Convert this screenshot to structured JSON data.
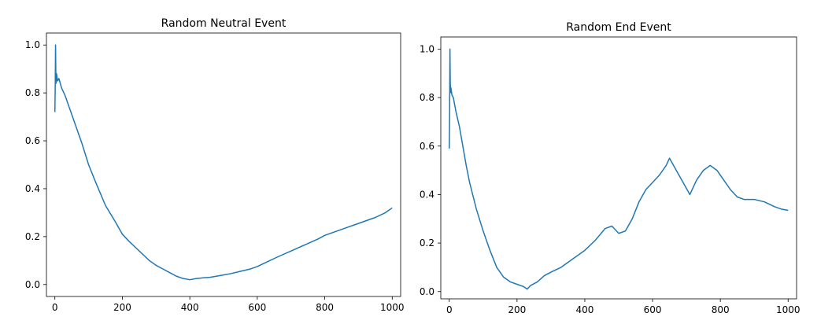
{
  "chart_data": [
    {
      "type": "line",
      "title": "Random Neutral Event",
      "xlabel": "",
      "ylabel": "",
      "xlim": [
        -25,
        1025
      ],
      "ylim": [
        -0.05,
        1.05
      ],
      "xticks": [
        0,
        200,
        400,
        600,
        800,
        1000
      ],
      "yticks": [
        0.0,
        0.2,
        0.4,
        0.6,
        0.8,
        1.0
      ],
      "xtick_labels": [
        "0",
        "200",
        "400",
        "600",
        "800",
        "1000"
      ],
      "ytick_labels": [
        "0.0",
        "0.2",
        "0.4",
        "0.6",
        "0.8",
        "1.0"
      ],
      "grid": false,
      "color": "#1f77b4",
      "series": [
        {
          "x": [
            0,
            1,
            2,
            3,
            4,
            5,
            8,
            12,
            20,
            30,
            40,
            50,
            60,
            80,
            100,
            120,
            150,
            180,
            200,
            220,
            250,
            280,
            300,
            320,
            340,
            360,
            380,
            400,
            420,
            440,
            460,
            480,
            500,
            520,
            550,
            580,
            600,
            630,
            660,
            700,
            740,
            780,
            800,
            850,
            900,
            950,
            980,
            1000
          ],
          "y": [
            0.72,
            0.82,
            1.0,
            0.86,
            0.84,
            0.88,
            0.85,
            0.86,
            0.82,
            0.79,
            0.75,
            0.71,
            0.67,
            0.59,
            0.5,
            0.43,
            0.33,
            0.26,
            0.21,
            0.18,
            0.14,
            0.1,
            0.08,
            0.065,
            0.05,
            0.035,
            0.025,
            0.02,
            0.025,
            0.028,
            0.03,
            0.035,
            0.04,
            0.045,
            0.055,
            0.065,
            0.075,
            0.095,
            0.115,
            0.14,
            0.165,
            0.19,
            0.205,
            0.23,
            0.255,
            0.28,
            0.3,
            0.32
          ]
        }
      ]
    },
    {
      "type": "line",
      "title": "Random End Event",
      "xlabel": "",
      "ylabel": "",
      "xlim": [
        -25,
        1025
      ],
      "ylim": [
        -0.03,
        1.05
      ],
      "xticks": [
        0,
        200,
        400,
        600,
        800,
        1000
      ],
      "yticks": [
        0.0,
        0.2,
        0.4,
        0.6,
        0.8,
        1.0
      ],
      "xtick_labels": [
        "0",
        "200",
        "400",
        "600",
        "800",
        "1000"
      ],
      "ytick_labels": [
        "0.0",
        "0.2",
        "0.4",
        "0.6",
        "0.8",
        "1.0"
      ],
      "grid": false,
      "color": "#1f77b4",
      "series": [
        {
          "x": [
            0,
            1,
            2,
            3,
            4,
            5,
            8,
            12,
            20,
            30,
            40,
            50,
            60,
            80,
            100,
            120,
            140,
            160,
            180,
            200,
            220,
            230,
            240,
            260,
            280,
            300,
            330,
            360,
            400,
            430,
            460,
            480,
            500,
            520,
            540,
            560,
            580,
            600,
            620,
            640,
            650,
            670,
            690,
            710,
            730,
            750,
            770,
            790,
            810,
            830,
            850,
            870,
            900,
            930,
            960,
            980,
            1000
          ],
          "y": [
            0.59,
            0.72,
            1.0,
            0.86,
            0.82,
            0.84,
            0.81,
            0.8,
            0.74,
            0.68,
            0.6,
            0.52,
            0.45,
            0.34,
            0.25,
            0.17,
            0.1,
            0.06,
            0.04,
            0.03,
            0.02,
            0.01,
            0.025,
            0.04,
            0.065,
            0.08,
            0.1,
            0.13,
            0.17,
            0.21,
            0.26,
            0.27,
            0.24,
            0.25,
            0.3,
            0.37,
            0.42,
            0.45,
            0.48,
            0.52,
            0.55,
            0.5,
            0.45,
            0.4,
            0.46,
            0.5,
            0.52,
            0.5,
            0.46,
            0.42,
            0.39,
            0.38,
            0.38,
            0.37,
            0.35,
            0.34,
            0.335
          ]
        }
      ]
    }
  ]
}
